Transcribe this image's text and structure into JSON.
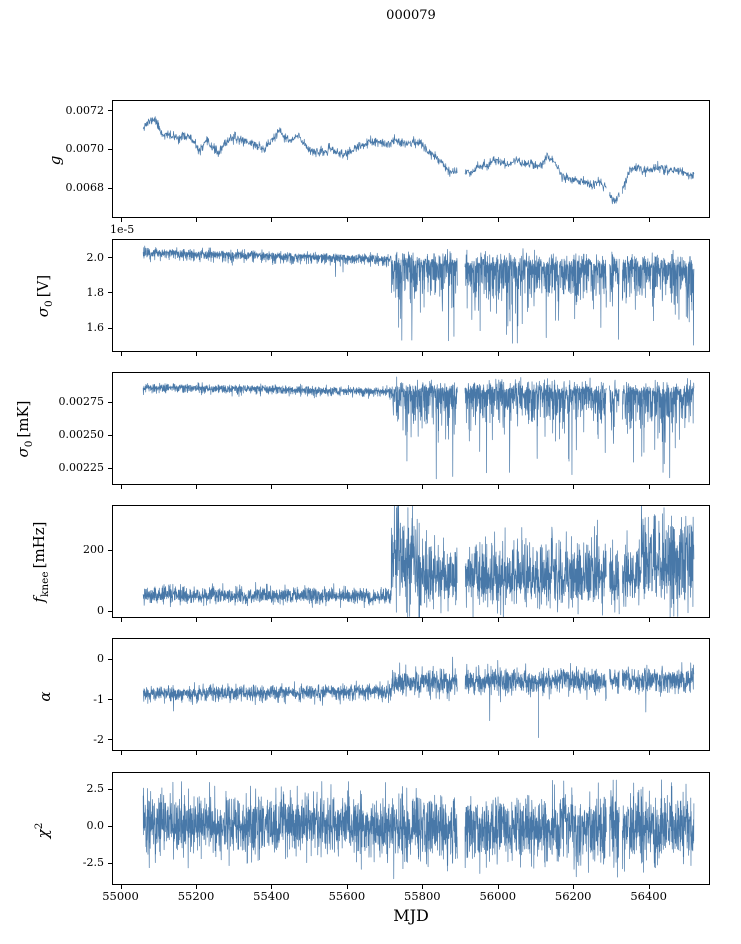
{
  "chart_data": {
    "type": "line",
    "title": "000079",
    "xlabel": "MJD",
    "line_color": "#4878a8",
    "xlim": [
      54980,
      56560
    ],
    "x_start": 55060,
    "x_end": 56520,
    "xticks": [
      {
        "v": 55000,
        "label": "55000"
      },
      {
        "v": 55200,
        "label": "55200"
      },
      {
        "v": 55400,
        "label": "55400"
      },
      {
        "v": 55600,
        "label": "55600"
      },
      {
        "v": 55800,
        "label": "55800"
      },
      {
        "v": 56000,
        "label": "56000"
      },
      {
        "v": 56200,
        "label": "56200"
      },
      {
        "v": 56400,
        "label": "56400"
      }
    ],
    "gaps": [
      [
        55893,
        55913
      ],
      [
        56288,
        56296
      ],
      [
        56322,
        56330
      ]
    ],
    "transition_mjd": 55718,
    "panels": [
      {
        "name": "g",
        "ylabel": {
          "base": "g",
          "sub": "",
          "sup": "",
          "unit": ""
        },
        "offset_text": "",
        "ylim": [
          0.00665,
          0.00725
        ],
        "yticks": [
          {
            "v": 0.0068,
            "label": "0.0068"
          },
          {
            "v": 0.007,
            "label": "0.0070"
          },
          {
            "v": 0.0072,
            "label": "0.0072"
          }
        ],
        "n": 1600,
        "seed": 11,
        "description": "Gain slowly drifts from ~0.0071 down to ~0.0069 with dip to 0.0067 near MJD 56310",
        "signal": {
          "kind": "trend",
          "noise": 1.2e-05,
          "points": [
            [
              55060,
              0.00712
            ],
            [
              55090,
              0.00716
            ],
            [
              55110,
              0.00708
            ],
            [
              55150,
              0.00706
            ],
            [
              55180,
              0.00707
            ],
            [
              55210,
              0.00699
            ],
            [
              55230,
              0.00704
            ],
            [
              55260,
              0.00698
            ],
            [
              55290,
              0.00706
            ],
            [
              55320,
              0.00705
            ],
            [
              55350,
              0.00703
            ],
            [
              55380,
              0.007
            ],
            [
              55420,
              0.00709
            ],
            [
              55450,
              0.00704
            ],
            [
              55470,
              0.00707
            ],
            [
              55500,
              0.007
            ],
            [
              55530,
              0.00698
            ],
            [
              55560,
              0.007
            ],
            [
              55590,
              0.00697
            ],
            [
              55620,
              0.007
            ],
            [
              55650,
              0.00703
            ],
            [
              55680,
              0.00704
            ],
            [
              55700,
              0.00702
            ],
            [
              55730,
              0.00705
            ],
            [
              55760,
              0.00703
            ],
            [
              55790,
              0.00704
            ],
            [
              55810,
              0.007
            ],
            [
              55830,
              0.00697
            ],
            [
              55850,
              0.00694
            ],
            [
              55870,
              0.00689
            ],
            [
              55890,
              0.00688
            ],
            [
              55910,
              0.00689
            ],
            [
              55930,
              0.00688
            ],
            [
              55950,
              0.00692
            ],
            [
              55970,
              0.00691
            ],
            [
              55990,
              0.00695
            ],
            [
              56010,
              0.00693
            ],
            [
              56030,
              0.00692
            ],
            [
              56050,
              0.00695
            ],
            [
              56070,
              0.00692
            ],
            [
              56090,
              0.00693
            ],
            [
              56110,
              0.00691
            ],
            [
              56130,
              0.00696
            ],
            [
              56150,
              0.00694
            ],
            [
              56170,
              0.00686
            ],
            [
              56190,
              0.00685
            ],
            [
              56210,
              0.00684
            ],
            [
              56230,
              0.00683
            ],
            [
              56250,
              0.00681
            ],
            [
              56270,
              0.00683
            ],
            [
              56290,
              0.0068
            ],
            [
              56310,
              0.00672
            ],
            [
              56330,
              0.00679
            ],
            [
              56350,
              0.00689
            ],
            [
              56370,
              0.00691
            ],
            [
              56390,
              0.00689
            ],
            [
              56410,
              0.0069
            ],
            [
              56430,
              0.00691
            ],
            [
              56450,
              0.00689
            ],
            [
              56470,
              0.0069
            ],
            [
              56500,
              0.00687
            ]
          ]
        },
        "events": []
      },
      {
        "name": "sigma0_V",
        "ylabel": {
          "base": "σ",
          "sub": "0",
          "sup": "",
          "unit": "[V]"
        },
        "offset_text": "1e-5",
        "ylim": [
          1.47,
          2.1
        ],
        "yticks": [
          {
            "v": 1.6,
            "label": "1.6"
          },
          {
            "v": 1.8,
            "label": "1.8"
          },
          {
            "v": 2.0,
            "label": "2.0"
          }
        ],
        "n": 2800,
        "seed": 22,
        "description": "White-noise level ~2.0e-5 V, quiet before MJD 55718, then noisy with deep downward spikes to ~1.5e-5",
        "signal": {
          "kind": "segments",
          "segments": [
            {
              "x0": 55060,
              "x1": 55718,
              "b0": 2.03,
              "b1": 1.99,
              "up": 0.012,
              "dn": 0.018,
              "sp": 0.008,
              "lo": 1.88,
              "hi": null
            },
            {
              "x0": 55718,
              "x1": 56520,
              "b0": 1.955,
              "b1": 1.935,
              "up": 0.035,
              "dn": 0.1,
              "sp": 0.05,
              "lo": 1.48,
              "hi": null
            }
          ]
        },
        "events": []
      },
      {
        "name": "sigma0_mK",
        "ylabel": {
          "base": "σ",
          "sub": "0",
          "sup": "",
          "unit": "[mK]"
        },
        "offset_text": "",
        "ylim": [
          0.00213,
          0.00297
        ],
        "yticks": [
          {
            "v": 0.00225,
            "label": "0.00225"
          },
          {
            "v": 0.0025,
            "label": "0.00250"
          },
          {
            "v": 0.00275,
            "label": "0.00275"
          }
        ],
        "n": 2800,
        "seed": 33,
        "description": "Noise in mK ~0.00285, quiet before MJD 55718, then downward spikes to ~0.0022",
        "signal": {
          "kind": "segments",
          "segments": [
            {
              "x0": 55060,
              "x1": 55718,
              "b0": 0.00286,
              "b1": 0.00283,
              "up": 1.5e-05,
              "dn": 2e-05,
              "sp": 0.006,
              "lo": 0.00278,
              "hi": null
            },
            {
              "x0": 55718,
              "x1": 56520,
              "b0": 0.00282,
              "b1": 0.00281,
              "up": 4e-05,
              "dn": 0.00012,
              "sp": 0.05,
              "lo": 0.00216,
              "hi": null
            }
          ]
        },
        "events": []
      },
      {
        "name": "f_knee",
        "ylabel": {
          "base": "f",
          "sub": "knee",
          "sup": "",
          "unit": "[mHz]"
        },
        "offset_text": "",
        "ylim": [
          -18,
          345
        ],
        "yticks": [
          {
            "v": 0,
            "label": "0"
          },
          {
            "v": 200,
            "label": "200"
          }
        ],
        "n": 2800,
        "seed": 44,
        "description": "Knee frequency ~50 mHz before MJD 55718, burst to ~300 mHz just after, then noisy 50-250 mHz",
        "signal": {
          "kind": "segments",
          "segments": [
            {
              "x0": 55060,
              "x1": 55718,
              "b0": 52,
              "b1": 48,
              "up": 15,
              "dn": 12,
              "sp": 0.004,
              "lo": null,
              "hi": 110
            },
            {
              "x0": 55718,
              "x1": 55795,
              "b0": 200,
              "b1": 140,
              "up": 80,
              "dn": 80,
              "sp": 0.06,
              "lo": null,
              "hi": 335
            },
            {
              "x0": 55795,
              "x1": 56380,
              "b0": 105,
              "b1": 115,
              "up": 55,
              "dn": 48,
              "sp": 0.035,
              "lo": null,
              "hi": 300
            },
            {
              "x0": 56380,
              "x1": 56520,
              "b0": 160,
              "b1": 150,
              "up": 80,
              "dn": 70,
              "sp": 0.05,
              "lo": null,
              "hi": 320
            }
          ]
        },
        "events": []
      },
      {
        "name": "alpha",
        "ylabel": {
          "base": "α",
          "sub": "",
          "sup": "",
          "unit": ""
        },
        "offset_text": "",
        "ylim": [
          -2.25,
          0.5
        ],
        "yticks": [
          {
            "v": -2,
            "label": "-2"
          },
          {
            "v": -1,
            "label": "-1"
          },
          {
            "v": 0,
            "label": "0"
          }
        ],
        "n": 2600,
        "seed": 55,
        "description": "Slope ~-0.85 before MJD 55718, then ~-0.55 with larger scatter; single deep spike to -1.95 near MJD 56108",
        "signal": {
          "kind": "segments",
          "segments": [
            {
              "x0": 55060,
              "x1": 55718,
              "b0": -0.86,
              "b1": -0.8,
              "up": 0.09,
              "dn": 0.1,
              "sp": 0.006,
              "lo": -1.3,
              "hi": null
            },
            {
              "x0": 55718,
              "x1": 56520,
              "b0": -0.56,
              "b1": -0.5,
              "up": 0.14,
              "dn": 0.17,
              "sp": 0.015,
              "lo": -1.55,
              "hi": 0.12
            }
          ]
        },
        "events": [
          [
            56108,
            -1.95
          ]
        ]
      },
      {
        "name": "chi2",
        "ylabel": {
          "base": "χ",
          "sub": "",
          "sup": "2",
          "unit": ""
        },
        "offset_text": "",
        "ylim": [
          -3.9,
          3.6
        ],
        "yticks": [
          {
            "v": -2.5,
            "label": "-2.5"
          },
          {
            "v": 0.0,
            "label": "0.0"
          },
          {
            "v": 2.5,
            "label": "2.5"
          }
        ],
        "n": 3000,
        "seed": 66,
        "description": "Chi-square statistic scattered about 0 with amplitude ~±2.5 over the whole range",
        "signal": {
          "kind": "segments",
          "segments": [
            {
              "x0": 55060,
              "x1": 55718,
              "b0": 0.1,
              "b1": 0.0,
              "up": 1.0,
              "dn": 1.0,
              "sp": 0.006,
              "lo": -3.0,
              "hi": 3.1
            },
            {
              "x0": 55718,
              "x1": 56520,
              "b0": -0.1,
              "b1": 0.0,
              "up": 1.05,
              "dn": 1.15,
              "sp": 0.01,
              "lo": -3.5,
              "hi": 3.2
            }
          ]
        },
        "events": []
      }
    ]
  }
}
